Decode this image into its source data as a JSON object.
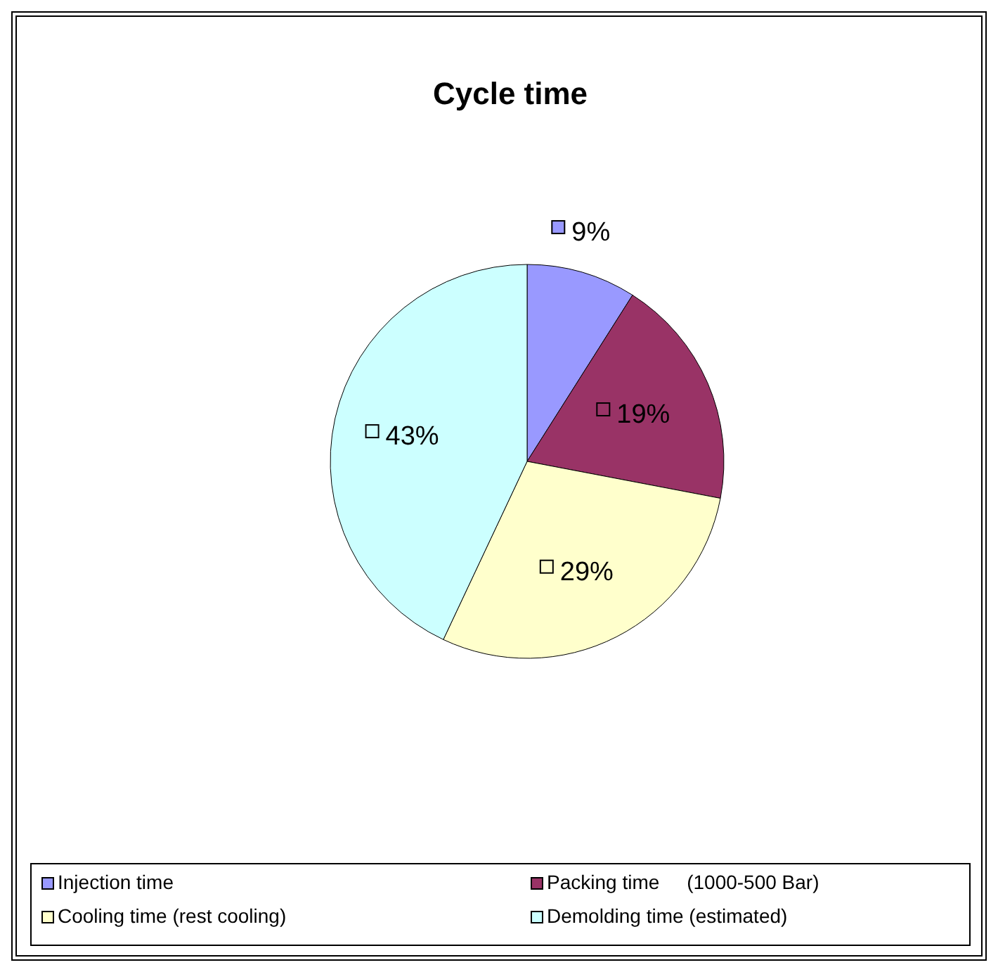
{
  "chart_data": {
    "type": "pie",
    "title": "Cycle time",
    "categories": [
      "Injection time",
      "Packing time     (1000-500 Bar)",
      "Cooling time (rest cooling)",
      "Demolding time (estimated)"
    ],
    "values": [
      9,
      19,
      29,
      43
    ],
    "colors": [
      "#9999ff",
      "#993366",
      "#ffffcc",
      "#ccffff"
    ],
    "value_labels": [
      "9%",
      "19%",
      "29%",
      "43%"
    ],
    "legend": "bottom"
  }
}
